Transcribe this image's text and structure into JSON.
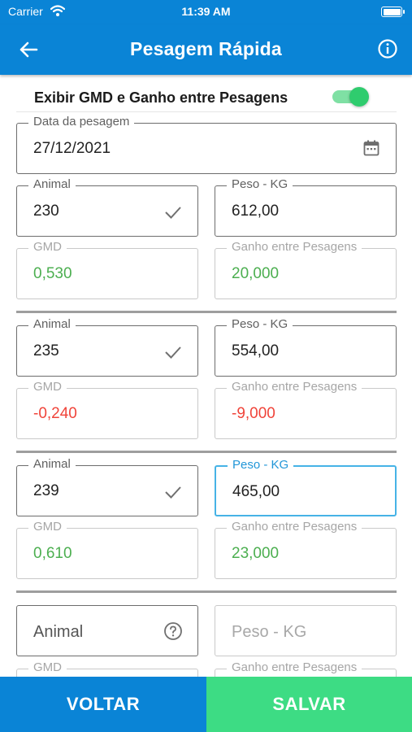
{
  "status": {
    "carrier": "Carrier",
    "time": "11:39 AM"
  },
  "header": {
    "title": "Pesagem Rápida"
  },
  "toggle": {
    "label": "Exibir GMD e Ganho entre Pesagens",
    "on": true
  },
  "date_field": {
    "label": "Data da pesagem",
    "value": "27/12/2021"
  },
  "entries": [
    {
      "animal_label": "Animal",
      "animal": "230",
      "peso_label": "Peso - KG",
      "peso": "612,00",
      "gmd_label": "GMD",
      "gmd": "0,530",
      "ganho_label": "Ganho entre Pesagens",
      "ganho": "20,000"
    },
    {
      "animal_label": "Animal",
      "animal": "235",
      "peso_label": "Peso - KG",
      "peso": "554,00",
      "gmd_label": "GMD",
      "gmd": "-0,240",
      "ganho_label": "Ganho entre Pesagens",
      "ganho": "-9,000"
    },
    {
      "animal_label": "Animal",
      "animal": "239",
      "peso_label": "Peso - KG",
      "peso": "465,00",
      "gmd_label": "GMD",
      "gmd": "0,610",
      "ganho_label": "Ganho entre Pesagens",
      "ganho": "23,000"
    }
  ],
  "new_entry": {
    "animal_placeholder": "Animal",
    "peso_placeholder": "Peso - KG",
    "gmd_label": "GMD",
    "ganho_label": "Ganho entre Pesagens"
  },
  "buttons": {
    "back": "VOLTAR",
    "save": "SALVAR"
  },
  "colors": {
    "primary": "#0a84d6",
    "save": "#3ddc84",
    "positive": "#4caf50",
    "negative": "#f0443a",
    "focus": "#46b3e6"
  },
  "icons": {
    "back": "arrow-left-icon",
    "info": "info-circle-icon",
    "calendar": "calendar-icon",
    "check": "check-icon",
    "help": "question-circle-icon",
    "wifi": "wifi-icon",
    "battery": "battery-icon"
  }
}
